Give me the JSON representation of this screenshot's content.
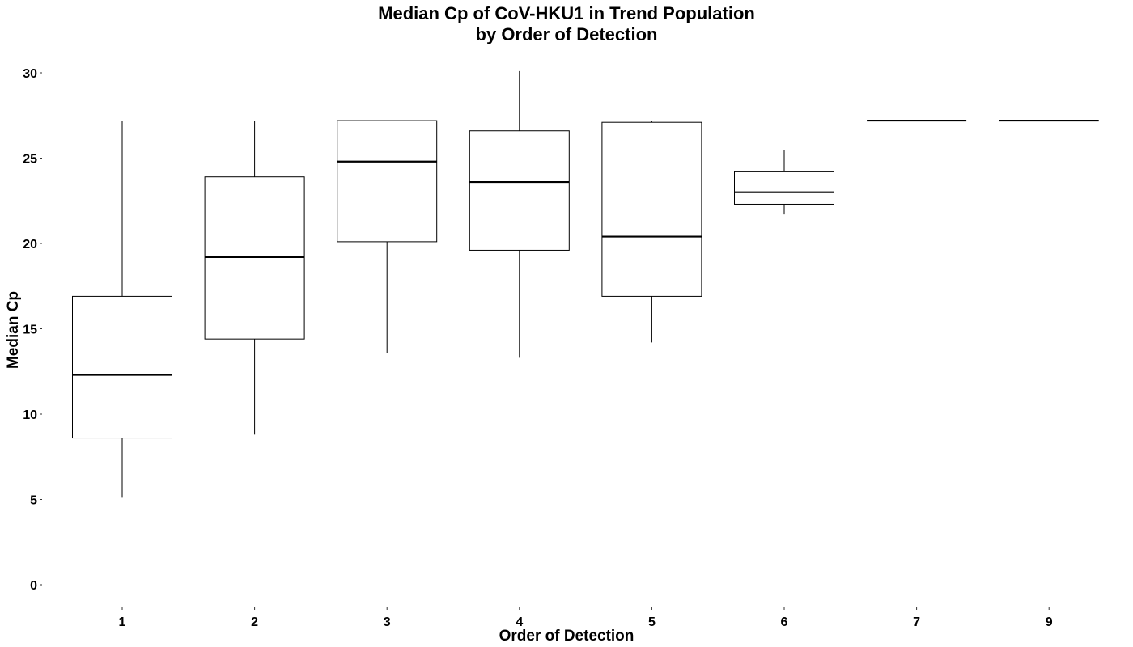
{
  "chart_data": {
    "type": "boxplot",
    "title_line1": "Median Cp of CoV-HKU1 in Trend Population",
    "title_line2": "by Order of Detection",
    "xlabel": "Order of Detection",
    "ylabel": "Median Cp",
    "ylim": [
      0,
      30
    ],
    "yticks": [
      "0",
      "5",
      "10",
      "15",
      "20",
      "25",
      "30"
    ],
    "categories": [
      "1",
      "2",
      "3",
      "4",
      "5",
      "6",
      "7",
      "9"
    ],
    "boxes": [
      {
        "category": "1",
        "min": 5.1,
        "q1": 8.6,
        "median": 12.3,
        "q3": 16.9,
        "max": 27.2
      },
      {
        "category": "2",
        "min": 8.8,
        "q1": 14.4,
        "median": 19.2,
        "q3": 23.9,
        "max": 27.2
      },
      {
        "category": "3",
        "min": 13.6,
        "q1": 20.1,
        "median": 24.8,
        "q3": 27.2,
        "max": 27.2
      },
      {
        "category": "4",
        "min": 13.3,
        "q1": 19.6,
        "median": 23.6,
        "q3": 26.6,
        "max": 30.1
      },
      {
        "category": "5",
        "min": 14.2,
        "q1": 16.9,
        "median": 20.4,
        "q3": 27.1,
        "max": 27.2
      },
      {
        "category": "6",
        "min": 21.7,
        "q1": 22.3,
        "median": 23.0,
        "q3": 24.2,
        "max": 25.5
      },
      {
        "category": "7",
        "min": 27.2,
        "q1": 27.2,
        "median": 27.2,
        "q3": 27.2,
        "max": 27.2
      },
      {
        "category": "9",
        "min": 27.2,
        "q1": 27.2,
        "median": 27.2,
        "q3": 27.2,
        "max": 27.2
      }
    ],
    "grid": false,
    "legend": "none",
    "colors": {
      "box_stroke": "#000000",
      "box_fill": "#ffffff",
      "background": "#ffffff"
    }
  }
}
